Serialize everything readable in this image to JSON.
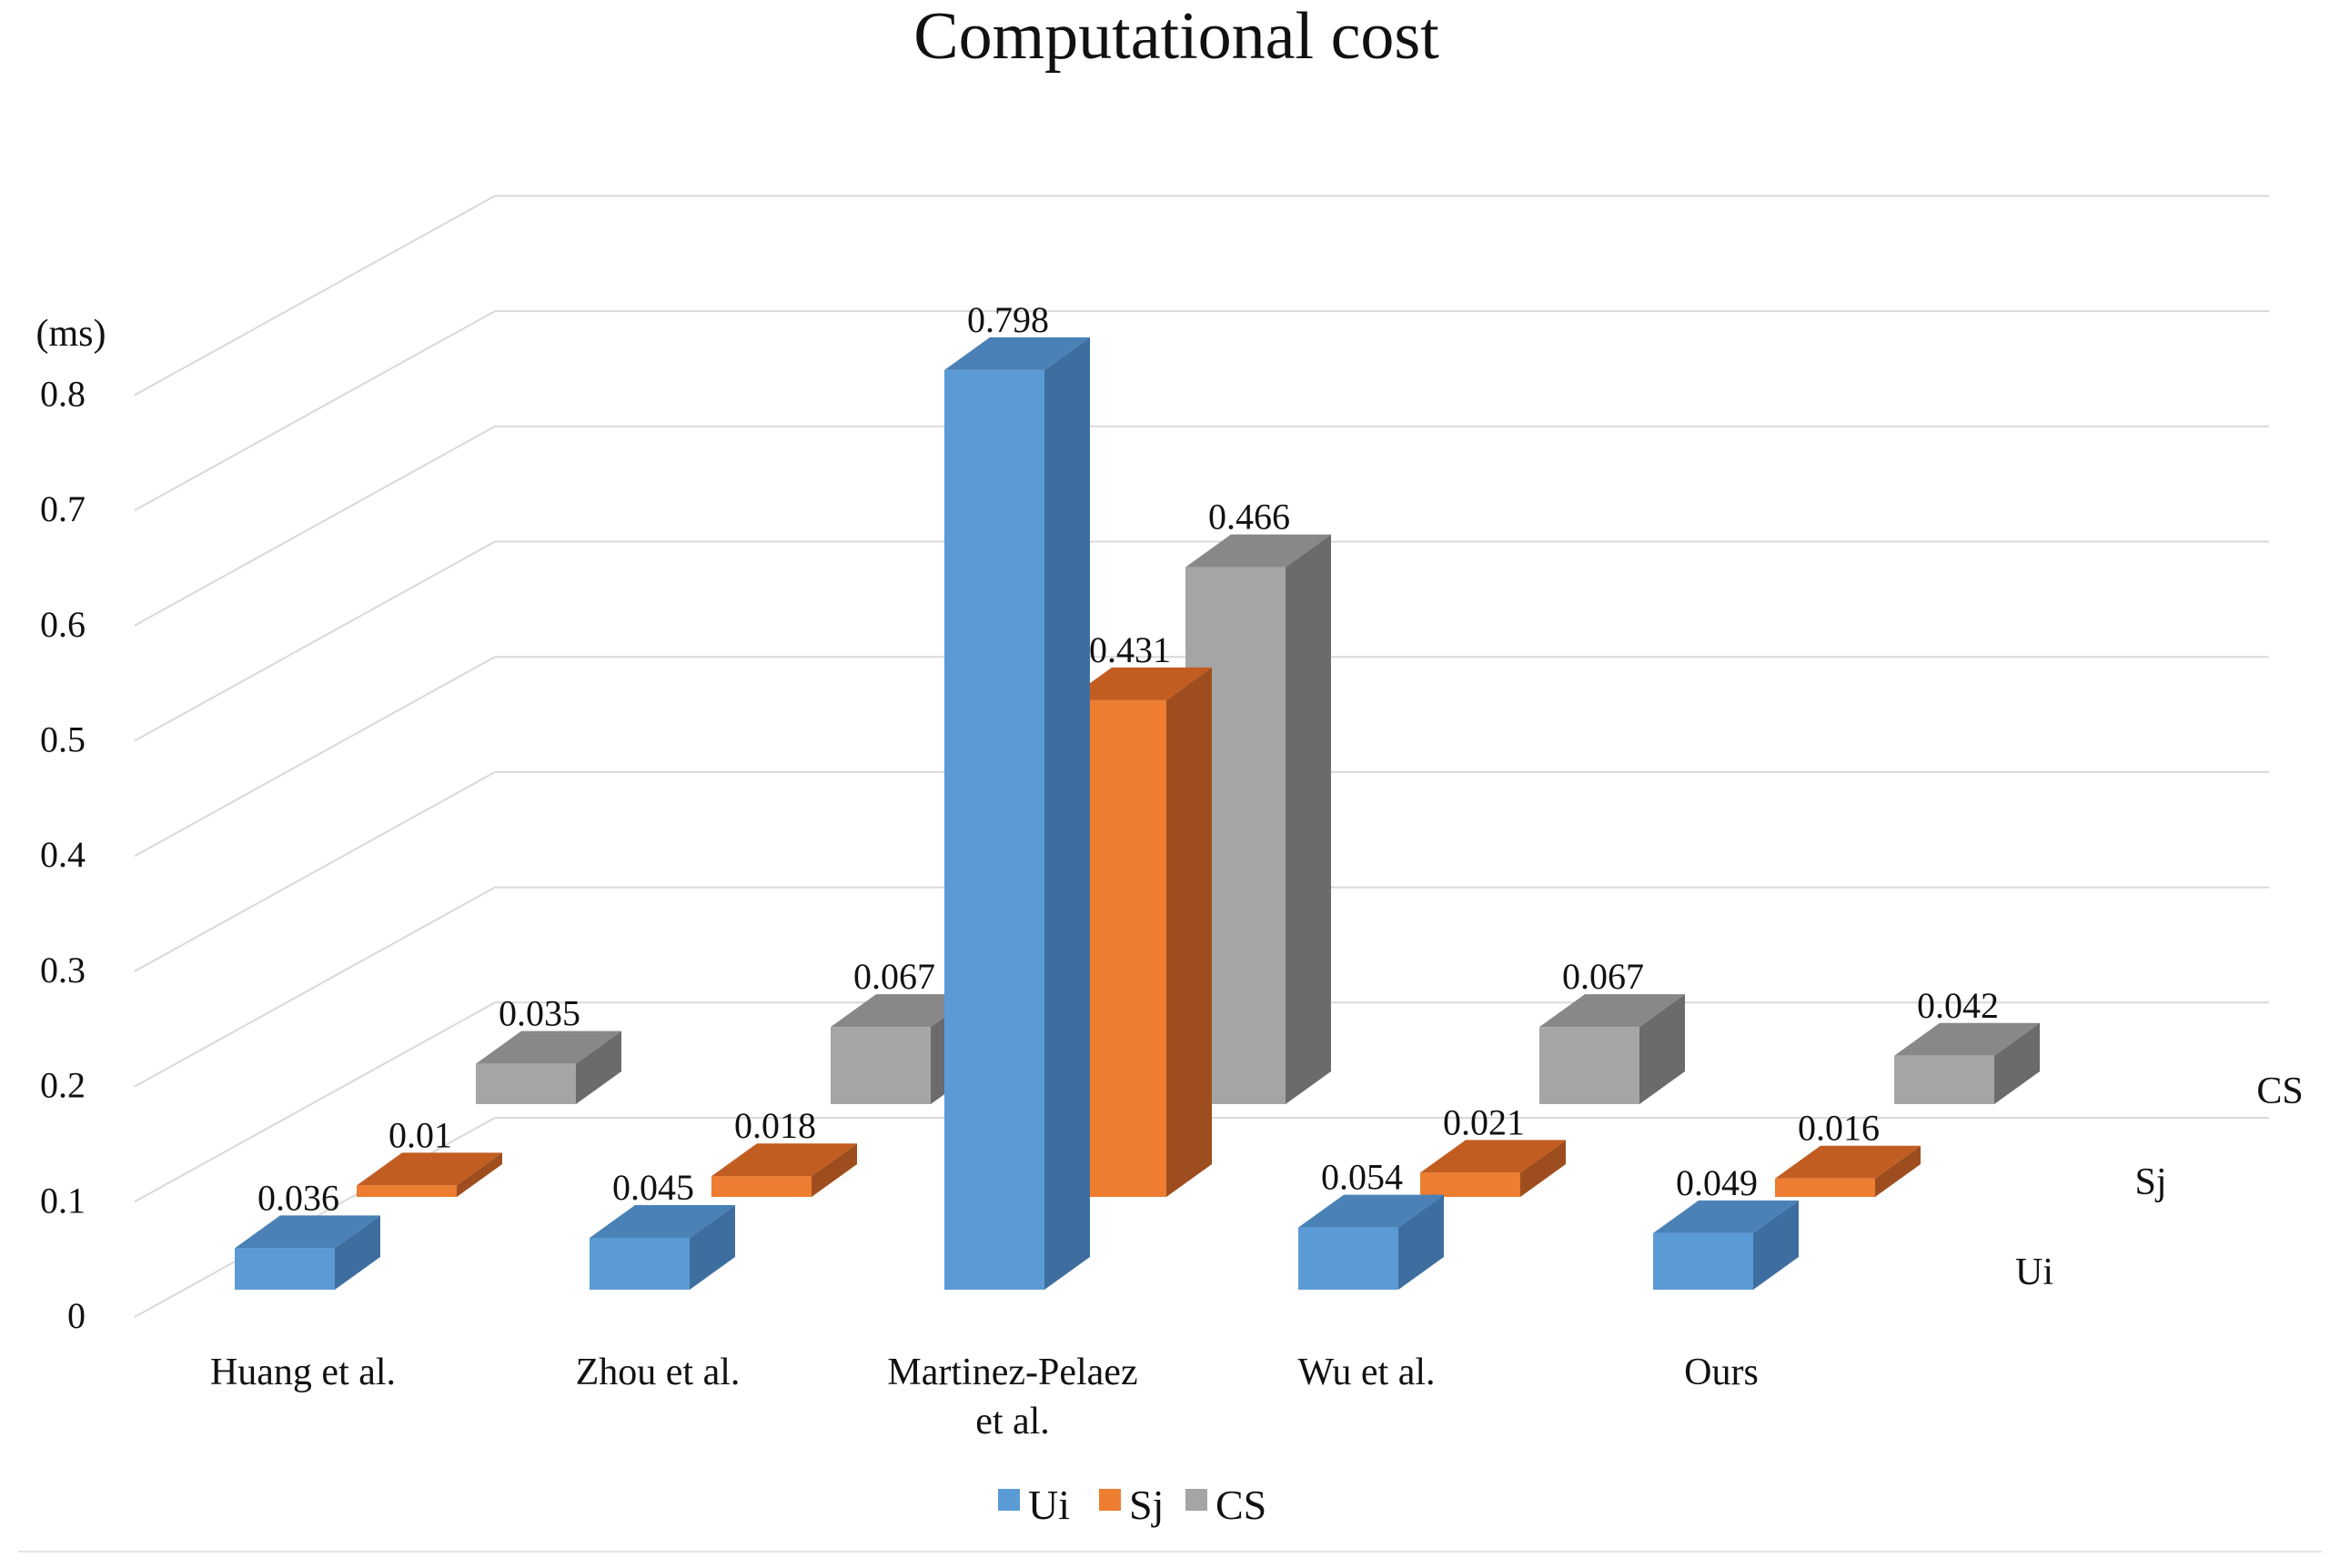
{
  "chart_data": {
    "type": "bar",
    "subtype": "3d-column",
    "title": "Computational cost",
    "ylabel": "(ms)",
    "ylim": [
      0,
      0.8
    ],
    "yticks": [
      "0",
      "0.1",
      "0.2",
      "0.3",
      "0.4",
      "0.5",
      "0.6",
      "0.7",
      "0.8"
    ],
    "grid": true,
    "categories": [
      {
        "line1": "Huang et al.",
        "line2": ""
      },
      {
        "line1": "Zhou et al.",
        "line2": ""
      },
      {
        "line1": "Martinez-Pelaez",
        "line2": "et al."
      },
      {
        "line1": "Wu et al.",
        "line2": ""
      },
      {
        "line1": "Ours",
        "line2": ""
      }
    ],
    "series": [
      {
        "name": "Ui",
        "values": [
          0.036,
          0.045,
          0.798,
          0.054,
          0.049
        ],
        "labels": [
          "0.036",
          "0.045",
          "0.798",
          "0.054",
          "0.049"
        ],
        "color": "#5b9bd5",
        "side": "#3e6ea0",
        "top": "#4a81b7"
      },
      {
        "name": "Sj",
        "values": [
          0.01,
          0.018,
          0.431,
          0.021,
          0.016
        ],
        "labels": [
          "0.01",
          "0.018",
          "0.431",
          "0.021",
          "0.016"
        ],
        "color": "#ed7d31",
        "side": "#9e4e1e",
        "top": "#c25d22"
      },
      {
        "name": "CS",
        "values": [
          0.035,
          0.067,
          0.466,
          0.067,
          0.042
        ],
        "labels": [
          "0.035",
          "0.067",
          "0.466",
          "0.067",
          "0.042"
        ],
        "color": "#a5a5a5",
        "side": "#6b6b6b",
        "top": "#888888"
      }
    ],
    "legend_position": "bottom"
  }
}
